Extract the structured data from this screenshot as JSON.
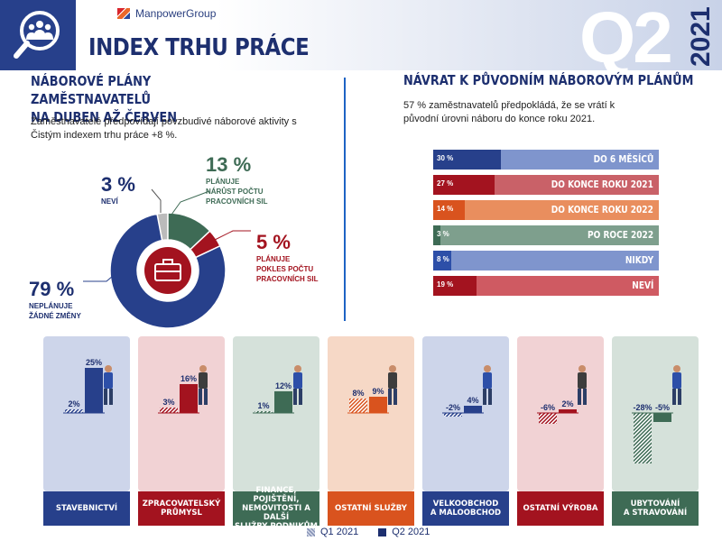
{
  "header": {
    "brand": "ManpowerGroup",
    "title": "INDEX TRHU PRÁCE",
    "quarter": "Q2",
    "year": "2021"
  },
  "left": {
    "title_line1": "NÁBOROVÉ PLÁNY ZAMĚSTNAVATELŮ",
    "title_line2": "NA DUBEN AŽ ČERVEN",
    "text": "Zaměstnavatelé předpovídají povzbudivé náborové aktivity s Čistým indexem trhu práce +8 %."
  },
  "right": {
    "title": "NÁVRAT K PŮVODNÍM NÁBOROVÝM PLÁNŮM",
    "text": "57 % zaměstnavatelů předpokládá, že se vrátí k původní úrovni náboru do konce roku 2021."
  },
  "legend": {
    "q1": "Q1 2021",
    "q2": "Q2 2021"
  },
  "colors": {
    "navy": "#27408b",
    "green": "#3e6b55",
    "red": "#a3131f",
    "orange": "#d9531e",
    "blue_bar": "#2d4fa8"
  },
  "chart_data": [
    {
      "type": "pie",
      "slices": [
        {
          "label_value": "13 %",
          "value": 13,
          "text_lines": [
            "PLÁNUJE",
            "NÁRŮST POČTU",
            "PRACOVNÍCH SIL"
          ],
          "color": "#3e6b55"
        },
        {
          "label_value": "5 %",
          "value": 5,
          "text_lines": [
            "PLÁNUJE",
            "POKLES POČTU",
            "PRACOVNÍCH SIL"
          ],
          "color": "#a3131f"
        },
        {
          "label_value": "79 %",
          "value": 79,
          "text_lines": [
            "NEPLÁNUJE",
            "ŽÁDNÉ ZMĚNY"
          ],
          "color": "#27408b"
        },
        {
          "label_value": "3 %",
          "value": 3,
          "text_lines": [
            "NEVÍ"
          ],
          "color": "#bbbbbb"
        }
      ]
    },
    {
      "type": "bar",
      "orientation": "horizontal",
      "categories": [
        "DO 6 MĚSÍCŮ",
        "DO KONCE ROKU 2021",
        "DO KONCE ROKU 2022",
        "PO ROCE 2022",
        "NIKDY",
        "NEVÍ"
      ],
      "values": [
        30,
        27,
        14,
        3,
        8,
        19
      ],
      "value_labels": [
        "30 %",
        "27 %",
        "14 %",
        "3 %",
        "8 %",
        "19 %"
      ],
      "colors": [
        "#27408b",
        "#a3131f",
        "#d9531e",
        "#3e6b55",
        "#2d4fa8",
        "#a3131f"
      ],
      "rest_colors": [
        "#7f95cd",
        "#c96168",
        "#e98e5e",
        "#7e9f8d",
        "#7f95cd",
        "#cf5a62"
      ]
    },
    {
      "type": "bar",
      "series": [
        {
          "name": "Q1 2021",
          "values": [
            2,
            3,
            1,
            8,
            -2,
            -6,
            -28
          ]
        },
        {
          "name": "Q2 2021",
          "values": [
            25,
            16,
            12,
            9,
            4,
            2,
            -5
          ]
        }
      ],
      "categories": [
        "STAVEBNICTVÍ",
        "ZPRACOVATELSKÝ PRŮMYSL",
        "FINANCE, POJIŠTĚNÍ, NEMOVITOSTI A DALŠÍ SLUŽBY PODNIKŮM",
        "OSTATNÍ SLUŽBY",
        "VELKOOBCHOD A MALOOBCHOD",
        "OSTATNÍ VÝROBA",
        "UBYTOVÁNÍ A STRAVOVÁNÍ"
      ],
      "label_lines": [
        [
          "STAVEBNICTVÍ"
        ],
        [
          "ZPRACOVATELSKÝ",
          "PRŮMYSL"
        ],
        [
          "FINANCE, POJIŠTĚNÍ,",
          "NEMOVITOSTI A DALŠÍ",
          "SLUŽBY PODNIKŮM"
        ],
        [
          "OSTATNÍ SLUŽBY"
        ],
        [
          "VELKOOBCHOD",
          "A MALOOBCHOD"
        ],
        [
          "OSTATNÍ VÝROBA"
        ],
        [
          "UBYTOVÁNÍ",
          "A STRAVOVÁNÍ"
        ]
      ],
      "q1_labels": [
        "2%",
        "3%",
        "1%",
        "8%",
        "-2%",
        "-6%",
        "-28%"
      ],
      "q2_labels": [
        "25%",
        "16%",
        "12%",
        "9%",
        "4%",
        "2%",
        "-5%"
      ],
      "panel_bg": [
        "#cdd5ea",
        "#f1d2d4",
        "#d5e1da",
        "#f6d8c6",
        "#cdd5ea",
        "#f1d2d4",
        "#d5e1da"
      ],
      "panel_color": [
        "#27408b",
        "#a3131f",
        "#3e6b55",
        "#d9531e",
        "#27408b",
        "#a3131f",
        "#3e6b55"
      ]
    }
  ]
}
